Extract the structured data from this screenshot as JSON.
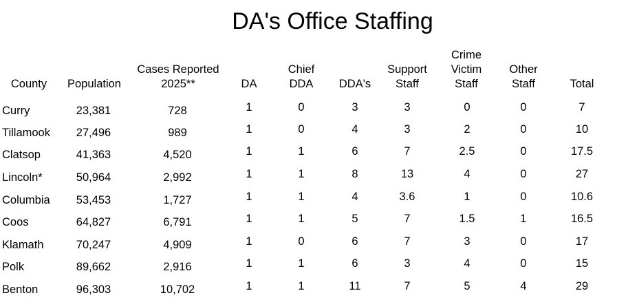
{
  "title": "DA's Office Staffing",
  "headers": [
    "County",
    "Population",
    "Cases Reported\n2025**",
    "DA",
    "Chief\nDDA",
    "DDA's",
    "Support\nStaff",
    "Crime\nVictim\nStaff",
    "Other\nStaff",
    "Total"
  ],
  "rows": [
    [
      "Curry",
      "23,381",
      "728",
      "1",
      "0",
      "3",
      "3",
      "0",
      "0",
      "7"
    ],
    [
      "Tillamook",
      "27,496",
      "989",
      "1",
      "0",
      "4",
      "3",
      "2",
      "0",
      "10"
    ],
    [
      "Clatsop",
      "41,363",
      "4,520",
      "1",
      "1",
      "6",
      "7",
      "2.5",
      "0",
      "17.5"
    ],
    [
      "Lincoln*",
      "50,964",
      "2,992",
      "1",
      "1",
      "8",
      "13",
      "4",
      "0",
      "27"
    ],
    [
      "Columbia",
      "53,453",
      "1,727",
      "1",
      "1",
      "4",
      "3.6",
      "1",
      "0",
      "10.6"
    ],
    [
      "Coos",
      "64,827",
      "6,791",
      "1",
      "1",
      "5",
      "7",
      "1.5",
      "1",
      "16.5"
    ],
    [
      "Klamath",
      "70,247",
      "4,909",
      "1",
      "0",
      "6",
      "7",
      "3",
      "0",
      "17"
    ],
    [
      "Polk",
      "89,662",
      "2,916",
      "1",
      "1",
      "6",
      "3",
      "4",
      "0",
      "15"
    ],
    [
      "Benton",
      "96,303",
      "10,702",
      "1",
      "1",
      "11",
      "7",
      "5",
      "4",
      "29"
    ]
  ]
}
